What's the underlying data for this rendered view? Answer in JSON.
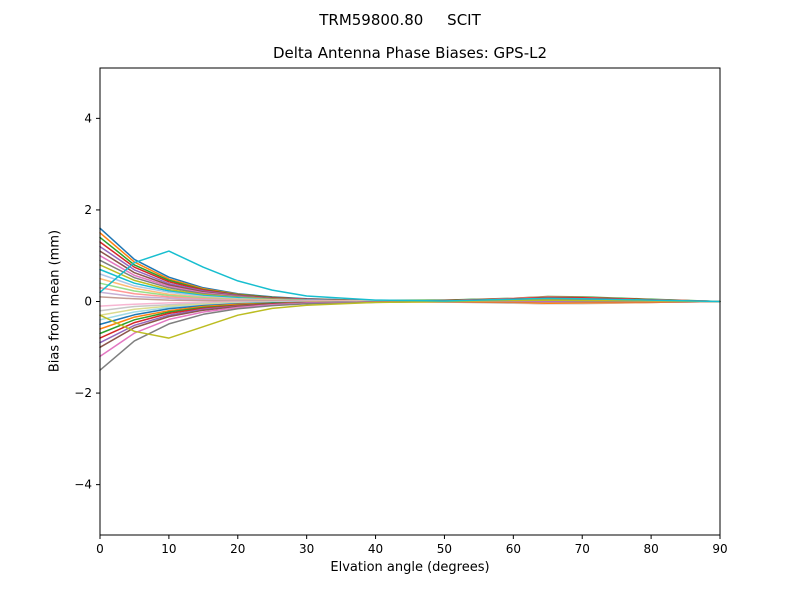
{
  "chart_data": {
    "type": "line",
    "suptitle": "TRM59800.80     SCIT",
    "title": "Delta Antenna Phase Biases: GPS-L2",
    "xlabel": "Elvation angle (degrees)",
    "ylabel": "Bias from mean (mm)",
    "xlim": [
      0,
      90
    ],
    "ylim": [
      -5.1,
      5.1
    ],
    "xticks": [
      0,
      10,
      20,
      30,
      40,
      50,
      60,
      70,
      80,
      90
    ],
    "yticks": [
      -4,
      -2,
      0,
      2,
      4
    ],
    "grid": false,
    "legend": "none",
    "x": [
      0,
      5,
      10,
      15,
      20,
      25,
      30,
      40,
      50,
      60,
      65,
      70,
      80,
      90
    ],
    "series": [
      {
        "name": "curve-01",
        "color": "#1f77b4",
        "values": [
          1.6,
          0.92,
          0.53,
          0.3,
          0.17,
          0.1,
          0.06,
          0.02,
          0.03,
          0.06,
          0.09,
          0.08,
          0.04,
          0.0
        ]
      },
      {
        "name": "curve-02",
        "color": "#ff7f0e",
        "values": [
          1.5,
          0.86,
          0.49,
          0.28,
          0.16,
          0.09,
          0.05,
          0.02,
          0.02,
          0.03,
          0.05,
          0.04,
          0.02,
          0.0
        ]
      },
      {
        "name": "curve-03",
        "color": "#2ca02c",
        "values": [
          1.4,
          0.8,
          0.46,
          0.26,
          0.15,
          0.09,
          0.05,
          0.02,
          0.03,
          0.07,
          0.11,
          0.1,
          0.05,
          0.0
        ]
      },
      {
        "name": "curve-04",
        "color": "#d62728",
        "values": [
          1.3,
          0.75,
          0.43,
          0.25,
          0.14,
          0.08,
          0.05,
          0.02,
          0.01,
          0.0,
          0.0,
          0.0,
          0.0,
          0.0
        ]
      },
      {
        "name": "curve-05",
        "color": "#9467bd",
        "values": [
          1.2,
          0.69,
          0.39,
          0.23,
          0.13,
          0.07,
          0.04,
          0.01,
          0.02,
          0.05,
          0.07,
          0.06,
          0.03,
          0.0
        ]
      },
      {
        "name": "curve-06",
        "color": "#8c564b",
        "values": [
          1.1,
          0.63,
          0.36,
          0.21,
          0.12,
          0.07,
          0.04,
          0.01,
          0.0,
          -0.03,
          -0.05,
          -0.04,
          -0.02,
          0.0
        ]
      },
      {
        "name": "curve-07",
        "color": "#e377c2",
        "values": [
          1.0,
          0.57,
          0.33,
          0.19,
          0.11,
          0.06,
          0.04,
          0.01,
          0.01,
          0.02,
          0.03,
          0.02,
          0.01,
          0.0
        ]
      },
      {
        "name": "curve-08",
        "color": "#7f7f7f",
        "values": [
          0.9,
          0.52,
          0.3,
          0.17,
          0.1,
          0.06,
          0.03,
          0.01,
          0.02,
          0.06,
          0.09,
          0.08,
          0.04,
          0.0
        ]
      },
      {
        "name": "curve-09",
        "color": "#bcbd22",
        "values": [
          0.8,
          0.46,
          0.26,
          0.15,
          0.09,
          0.05,
          0.03,
          0.01,
          0.0,
          0.0,
          0.0,
          0.0,
          0.0,
          0.0
        ]
      },
      {
        "name": "curve-10",
        "color": "#17becf",
        "values": [
          0.7,
          0.4,
          0.23,
          0.13,
          0.08,
          0.04,
          0.03,
          0.01,
          0.01,
          0.04,
          0.05,
          0.05,
          0.02,
          0.0
        ]
      },
      {
        "name": "curve-11",
        "color": "#aec7e8",
        "values": [
          0.6,
          0.34,
          0.2,
          0.11,
          0.06,
          0.04,
          0.02,
          0.01,
          -0.01,
          -0.02,
          -0.03,
          -0.02,
          -0.01,
          0.0
        ]
      },
      {
        "name": "curve-12",
        "color": "#ffbb78",
        "values": [
          0.5,
          0.29,
          0.16,
          0.09,
          0.05,
          0.03,
          0.02,
          0.01,
          0.02,
          0.05,
          0.08,
          0.07,
          0.04,
          0.0
        ]
      },
      {
        "name": "curve-13",
        "color": "#98df8a",
        "values": [
          0.4,
          0.23,
          0.13,
          0.08,
          0.04,
          0.02,
          0.01,
          0.0,
          0.0,
          0.01,
          0.02,
          0.02,
          0.01,
          0.0
        ]
      },
      {
        "name": "curve-14",
        "color": "#ff9896",
        "values": [
          0.3,
          0.17,
          0.1,
          0.06,
          0.03,
          0.02,
          0.01,
          0.0,
          0.02,
          0.07,
          0.1,
          0.09,
          0.04,
          0.0
        ]
      },
      {
        "name": "curve-15",
        "color": "#c5b0d5",
        "values": [
          0.2,
          0.11,
          0.07,
          0.04,
          0.02,
          0.01,
          0.01,
          0.0,
          0.0,
          0.0,
          0.0,
          0.0,
          0.0,
          0.0
        ]
      },
      {
        "name": "curve-16",
        "color": "#c49c94",
        "values": [
          0.1,
          0.06,
          0.03,
          0.02,
          0.01,
          0.01,
          0.0,
          0.0,
          0.01,
          0.03,
          0.05,
          0.04,
          0.02,
          0.0
        ]
      },
      {
        "name": "curve-17",
        "color": "#f7b6d2",
        "values": [
          -0.1,
          -0.06,
          -0.03,
          -0.02,
          -0.01,
          -0.01,
          0.0,
          0.0,
          0.01,
          0.02,
          0.04,
          0.03,
          0.02,
          0.0
        ]
      },
      {
        "name": "curve-18",
        "color": "#c7c7c7",
        "values": [
          -0.2,
          -0.11,
          -0.07,
          -0.04,
          -0.02,
          -0.01,
          -0.01,
          0.0,
          -0.01,
          -0.04,
          -0.05,
          -0.05,
          -0.02,
          0.0
        ]
      },
      {
        "name": "curve-19",
        "color": "#dbdb8d",
        "values": [
          -0.3,
          -0.17,
          -0.1,
          -0.06,
          -0.03,
          -0.02,
          -0.01,
          0.0,
          0.01,
          0.04,
          0.06,
          0.06,
          0.03,
          0.0
        ]
      },
      {
        "name": "curve-20",
        "color": "#9edae5",
        "values": [
          -0.4,
          -0.23,
          -0.13,
          -0.08,
          -0.04,
          -0.02,
          -0.01,
          0.0,
          0.0,
          0.0,
          0.0,
          0.0,
          0.0,
          0.0
        ]
      },
      {
        "name": "curve-21",
        "color": "#1f77b4",
        "values": [
          -0.5,
          -0.29,
          -0.16,
          -0.09,
          -0.05,
          -0.03,
          -0.02,
          -0.01,
          0.01,
          0.05,
          0.07,
          0.06,
          0.03,
          0.0
        ]
      },
      {
        "name": "curve-22",
        "color": "#ff7f0e",
        "values": [
          -0.6,
          -0.34,
          -0.2,
          -0.11,
          -0.06,
          -0.04,
          -0.02,
          -0.01,
          -0.01,
          -0.02,
          -0.04,
          -0.03,
          -0.02,
          0.0
        ]
      },
      {
        "name": "curve-23",
        "color": "#2ca02c",
        "values": [
          -0.7,
          -0.4,
          -0.23,
          -0.13,
          -0.08,
          -0.04,
          -0.03,
          -0.01,
          0.0,
          0.02,
          0.03,
          0.02,
          0.01,
          0.0
        ]
      },
      {
        "name": "curve-24",
        "color": "#d62728",
        "values": [
          -0.8,
          -0.46,
          -0.26,
          -0.15,
          -0.09,
          -0.05,
          -0.03,
          -0.01,
          0.02,
          0.06,
          0.09,
          0.08,
          0.04,
          0.0
        ]
      },
      {
        "name": "curve-25",
        "color": "#9467bd",
        "values": [
          -0.9,
          -0.52,
          -0.3,
          -0.17,
          -0.1,
          -0.06,
          -0.03,
          -0.01,
          0.0,
          0.0,
          0.0,
          0.0,
          0.0,
          0.0
        ]
      },
      {
        "name": "curve-26",
        "color": "#8c564b",
        "values": [
          -1.0,
          -0.57,
          -0.33,
          -0.19,
          -0.11,
          -0.06,
          -0.04,
          -0.01,
          0.01,
          0.03,
          0.05,
          0.04,
          0.02,
          0.0
        ]
      },
      {
        "name": "curve-27",
        "color": "#e377c2",
        "values": [
          -1.2,
          -0.69,
          -0.39,
          -0.23,
          -0.13,
          -0.07,
          -0.04,
          -0.01,
          0.0,
          0.01,
          0.02,
          0.02,
          0.01,
          0.0
        ]
      },
      {
        "name": "curve-28",
        "color": "#7f7f7f",
        "values": [
          -1.5,
          -0.86,
          -0.49,
          -0.28,
          -0.16,
          -0.09,
          -0.05,
          -0.02,
          0.01,
          0.04,
          0.05,
          0.05,
          0.02,
          0.0
        ]
      },
      {
        "name": "curve-29",
        "color": "#bcbd22",
        "values": [
          -0.3,
          -0.65,
          -0.8,
          -0.55,
          -0.3,
          -0.15,
          -0.08,
          -0.02,
          0.0,
          0.02,
          0.03,
          0.02,
          0.01,
          0.0
        ]
      },
      {
        "name": "curve-30",
        "color": "#17becf",
        "values": [
          0.2,
          0.85,
          1.1,
          0.75,
          0.45,
          0.25,
          0.12,
          0.03,
          0.01,
          0.05,
          0.07,
          0.06,
          0.03,
          0.0
        ]
      }
    ]
  }
}
